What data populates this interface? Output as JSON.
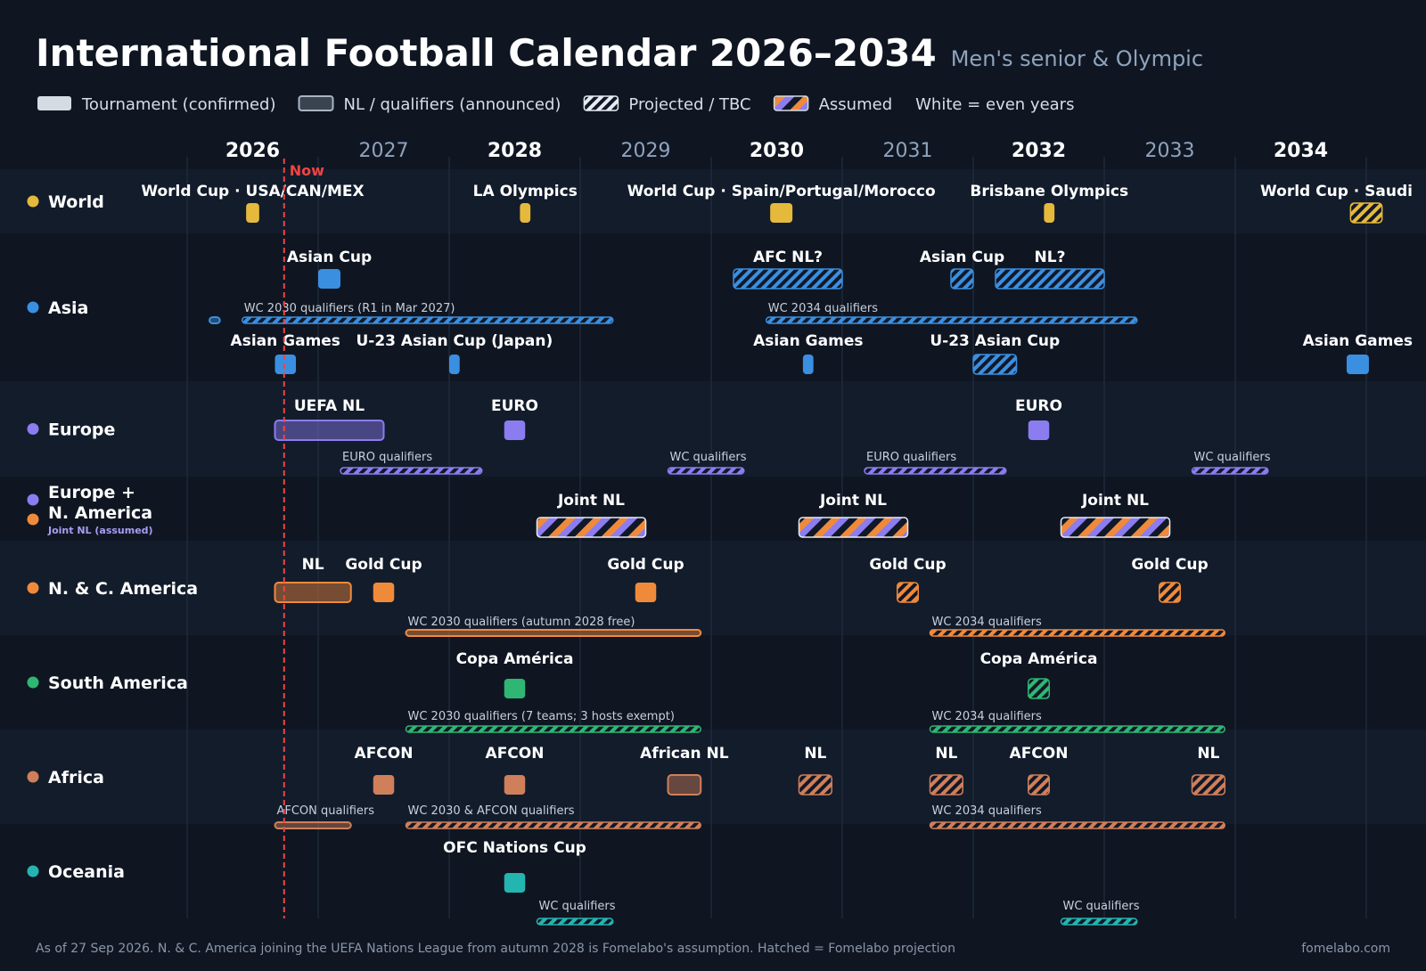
{
  "title": "International Football Calendar 2026–2034",
  "subtitle": "Men's senior & Olympic",
  "legend": [
    {
      "label": "Tournament (confirmed)",
      "kind": "solid"
    },
    {
      "label": "NL / qualifiers (announced)",
      "kind": "outline"
    },
    {
      "label": "Projected / TBC",
      "kind": "hatch"
    },
    {
      "label": "Assumed",
      "kind": "assumed"
    },
    {
      "label": "White = even years",
      "kind": "text"
    }
  ],
  "now_label": "Now",
  "footer_note": "As of 27 Sep 2026. N. & C. America joining the UEFA Nations League from autumn 2028 is Fomelabo's assumption. Hatched = Fomelabo projection",
  "footer_site": "fomelabo.com",
  "colors": {
    "background": "#0f1622",
    "world": "#e5b93b",
    "asia": "#3b8fe0",
    "europe": "#8b7cf0",
    "n_america": "#f08a3b",
    "south_america": "#2fb673",
    "africa": "#cf7f5a",
    "oceania": "#25b5b0",
    "now": "#ef4444"
  },
  "chart_data": {
    "type": "timeline",
    "x_range": [
      2026,
      2034.5
    ],
    "now": 2026.74,
    "years": [
      {
        "label": "2026",
        "value": 2026,
        "even": true
      },
      {
        "label": "2027",
        "value": 2027,
        "even": false
      },
      {
        "label": "2028",
        "value": 2028,
        "even": true
      },
      {
        "label": "2029",
        "value": 2029,
        "even": false
      },
      {
        "label": "2030",
        "value": 2030,
        "even": true
      },
      {
        "label": "2031",
        "value": 2031,
        "even": false
      },
      {
        "label": "2032",
        "value": 2032,
        "even": true
      },
      {
        "label": "2033",
        "value": 2033,
        "even": false
      },
      {
        "label": "2034",
        "value": 2034,
        "even": true
      }
    ],
    "rows": [
      {
        "key": "world",
        "label": "World",
        "color": "#e5b93b",
        "events": [
          {
            "label": "World Cup · USA/CAN/MEX",
            "start": 2026.45,
            "end": 2026.55,
            "lane": 1,
            "style": "solid"
          },
          {
            "label": "LA Olympics",
            "start": 2028.54,
            "end": 2028.62,
            "lane": 1,
            "style": "solid"
          },
          {
            "label": "World Cup · Spain/Portugal/Morocco",
            "start": 2030.45,
            "end": 2030.62,
            "lane": 1,
            "style": "solid"
          },
          {
            "label": "Brisbane Olympics",
            "start": 2032.54,
            "end": 2032.62,
            "lane": 1,
            "style": "solid"
          },
          {
            "label": "World Cup · Saudi",
            "start": 2034.88,
            "end": 2035.12,
            "lane": 1,
            "style": "hatch"
          }
        ]
      },
      {
        "key": "asia",
        "label": "Asia",
        "color": "#3b8fe0",
        "events": [
          {
            "label": "Asian Cup",
            "start": 2027.0,
            "end": 2027.17,
            "lane": 1,
            "style": "solid"
          },
          {
            "label": "AFC NL?",
            "start": 2030.17,
            "end": 2031.0,
            "lane": 1,
            "style": "hatch"
          },
          {
            "label": "Asian Cup",
            "start": 2031.83,
            "end": 2032.0,
            "lane": 1,
            "style": "hatch"
          },
          {
            "label": "NL?",
            "start": 2032.17,
            "end": 2033.0,
            "lane": 1,
            "style": "hatch"
          },
          {
            "label": "",
            "start": 2026.17,
            "end": 2026.25,
            "lane": 2,
            "style": "outline"
          },
          {
            "label": "WC 2030 qualifiers (R1 in Mar 2027)",
            "start": 2026.42,
            "end": 2029.25,
            "lane": 2,
            "style": "hatch",
            "thin": true
          },
          {
            "label": "WC 2034 qualifiers",
            "start": 2030.42,
            "end": 2033.25,
            "lane": 2,
            "style": "hatch",
            "thin": true
          },
          {
            "label": "Asian Games",
            "start": 2026.67,
            "end": 2026.83,
            "lane": 3,
            "style": "solid"
          },
          {
            "label": "U-23 Asian Cup (Japan)",
            "start": 2028.0,
            "end": 2028.08,
            "lane": 3,
            "style": "solid"
          },
          {
            "label": "Asian Games",
            "start": 2030.7,
            "end": 2030.78,
            "lane": 3,
            "style": "solid"
          },
          {
            "label": "U-23 Asian Cup",
            "start": 2032.0,
            "end": 2032.33,
            "lane": 3,
            "style": "hatch"
          },
          {
            "label": "Asian Games",
            "start": 2034.85,
            "end": 2035.02,
            "lane": 3,
            "style": "solid"
          }
        ]
      },
      {
        "key": "europe",
        "label": "Europe",
        "color": "#8b7cf0",
        "events": [
          {
            "label": "UEFA NL",
            "start": 2026.67,
            "end": 2027.5,
            "lane": 1,
            "style": "outline"
          },
          {
            "label": "EURO",
            "start": 2028.42,
            "end": 2028.58,
            "lane": 1,
            "style": "solid"
          },
          {
            "label": "EURO",
            "start": 2032.42,
            "end": 2032.58,
            "lane": 1,
            "style": "solid"
          },
          {
            "label": "EURO qualifiers",
            "start": 2027.17,
            "end": 2028.25,
            "lane": 2,
            "style": "hatch",
            "thin": true
          },
          {
            "label": "WC qualifiers",
            "start": 2029.67,
            "end": 2030.25,
            "lane": 2,
            "style": "hatch",
            "thin": true
          },
          {
            "label": "EURO qualifiers",
            "start": 2031.17,
            "end": 2032.25,
            "lane": 2,
            "style": "hatch",
            "thin": true
          },
          {
            "label": "WC qualifiers",
            "start": 2033.67,
            "end": 2034.25,
            "lane": 2,
            "style": "hatch",
            "thin": true
          }
        ]
      },
      {
        "key": "europe_na",
        "label": "Europe +",
        "label2": "N. America",
        "sublabel": "Joint NL (assumed)",
        "color": "#8b7cf0",
        "color2": "#f08a3b",
        "events": [
          {
            "label": "Joint NL",
            "start": 2028.67,
            "end": 2029.5,
            "lane": 1,
            "style": "assumed"
          },
          {
            "label": "Joint NL",
            "start": 2030.67,
            "end": 2031.5,
            "lane": 1,
            "style": "assumed"
          },
          {
            "label": "Joint NL",
            "start": 2032.67,
            "end": 2033.5,
            "lane": 1,
            "style": "assumed"
          }
        ]
      },
      {
        "key": "n_america",
        "label": "N. & C. America",
        "color": "#f08a3b",
        "events": [
          {
            "label": "NL",
            "start": 2026.67,
            "end": 2027.25,
            "lane": 1,
            "style": "outline"
          },
          {
            "label": "Gold Cup",
            "start": 2027.42,
            "end": 2027.58,
            "lane": 1,
            "style": "solid"
          },
          {
            "label": "Gold Cup",
            "start": 2029.42,
            "end": 2029.58,
            "lane": 1,
            "style": "solid"
          },
          {
            "label": "Gold Cup",
            "start": 2031.42,
            "end": 2031.58,
            "lane": 1,
            "style": "hatch"
          },
          {
            "label": "Gold Cup",
            "start": 2033.42,
            "end": 2033.58,
            "lane": 1,
            "style": "hatch"
          },
          {
            "label": "WC 2030 qualifiers (autumn 2028 free)",
            "start": 2027.67,
            "end": 2029.92,
            "lane": 2,
            "style": "outline",
            "thin": true
          },
          {
            "label": "WC 2034 qualifiers",
            "start": 2031.67,
            "end": 2033.92,
            "lane": 2,
            "style": "hatch",
            "thin": true
          }
        ]
      },
      {
        "key": "south_america",
        "label": "South America",
        "color": "#2fb673",
        "events": [
          {
            "label": "Copa América",
            "start": 2028.42,
            "end": 2028.58,
            "lane": 1,
            "style": "solid"
          },
          {
            "label": "Copa América",
            "start": 2032.42,
            "end": 2032.58,
            "lane": 1,
            "style": "hatch"
          },
          {
            "label": "WC 2030 qualifiers (7 teams; 3 hosts exempt)",
            "start": 2027.67,
            "end": 2029.92,
            "lane": 2,
            "style": "hatch",
            "thin": true
          },
          {
            "label": "WC 2034 qualifiers",
            "start": 2031.67,
            "end": 2033.92,
            "lane": 2,
            "style": "hatch",
            "thin": true
          }
        ]
      },
      {
        "key": "africa",
        "label": "Africa",
        "color": "#cf7f5a",
        "events": [
          {
            "label": "AFCON",
            "start": 2027.42,
            "end": 2027.58,
            "lane": 1,
            "style": "solid"
          },
          {
            "label": "AFCON",
            "start": 2028.42,
            "end": 2028.58,
            "lane": 1,
            "style": "solid"
          },
          {
            "label": "African NL",
            "start": 2029.67,
            "end": 2029.92,
            "lane": 1,
            "style": "outline"
          },
          {
            "label": "NL",
            "start": 2030.67,
            "end": 2030.92,
            "lane": 1,
            "style": "hatch"
          },
          {
            "label": "NL",
            "start": 2031.67,
            "end": 2031.92,
            "lane": 1,
            "style": "hatch"
          },
          {
            "label": "AFCON",
            "start": 2032.42,
            "end": 2032.58,
            "lane": 1,
            "style": "hatch"
          },
          {
            "label": "NL",
            "start": 2033.67,
            "end": 2033.92,
            "lane": 1,
            "style": "hatch"
          },
          {
            "label": "AFCON qualifiers",
            "start": 2026.67,
            "end": 2027.25,
            "lane": 2,
            "style": "outline",
            "thin": true
          },
          {
            "label": "WC 2030 & AFCON qualifiers",
            "start": 2027.67,
            "end": 2029.92,
            "lane": 2,
            "style": "hatch",
            "thin": true
          },
          {
            "label": "WC 2034 qualifiers",
            "start": 2031.67,
            "end": 2033.92,
            "lane": 2,
            "style": "hatch",
            "thin": true
          }
        ]
      },
      {
        "key": "oceania",
        "label": "Oceania",
        "color": "#25b5b0",
        "events": [
          {
            "label": "OFC Nations Cup",
            "start": 2028.42,
            "end": 2028.58,
            "lane": 1,
            "style": "solid"
          },
          {
            "label": "WC qualifiers",
            "start": 2028.67,
            "end": 2029.25,
            "lane": 2,
            "style": "hatch",
            "thin": true
          },
          {
            "label": "WC qualifiers",
            "start": 2032.67,
            "end": 2033.25,
            "lane": 2,
            "style": "hatch",
            "thin": true
          }
        ]
      }
    ]
  }
}
